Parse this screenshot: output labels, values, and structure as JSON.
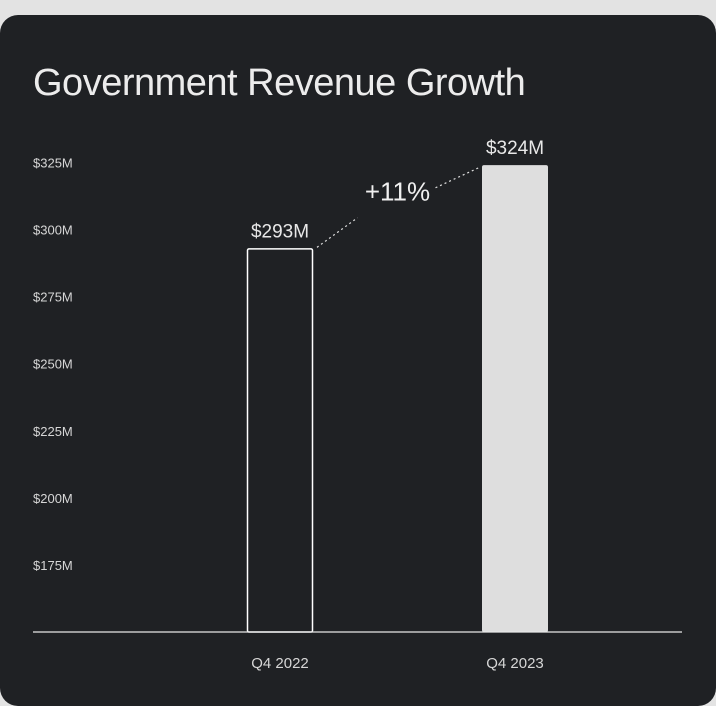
{
  "chart_data": {
    "type": "bar",
    "title": "Government Revenue Growth",
    "categories": [
      "Q4 2022",
      "Q4 2023"
    ],
    "values": [
      293,
      324
    ],
    "value_labels": [
      "$293M",
      "$324M"
    ],
    "bar_styles": [
      "outline",
      "filled"
    ],
    "yticks": [
      175,
      200,
      225,
      250,
      275,
      300,
      325
    ],
    "ytick_labels": [
      "$175M",
      "$200M",
      "$225M",
      "$250M",
      "$275M",
      "$300M",
      "$325M"
    ],
    "ylim": [
      150,
      325
    ],
    "xlabel": "",
    "ylabel": "",
    "grid": false,
    "annotation": "+11%",
    "colors": {
      "background": "#1f2124",
      "bar_fill": "#dedede",
      "bar_outline": "#ffffff",
      "text": "#d6d6d6",
      "axis": "#e8e8e8"
    }
  }
}
